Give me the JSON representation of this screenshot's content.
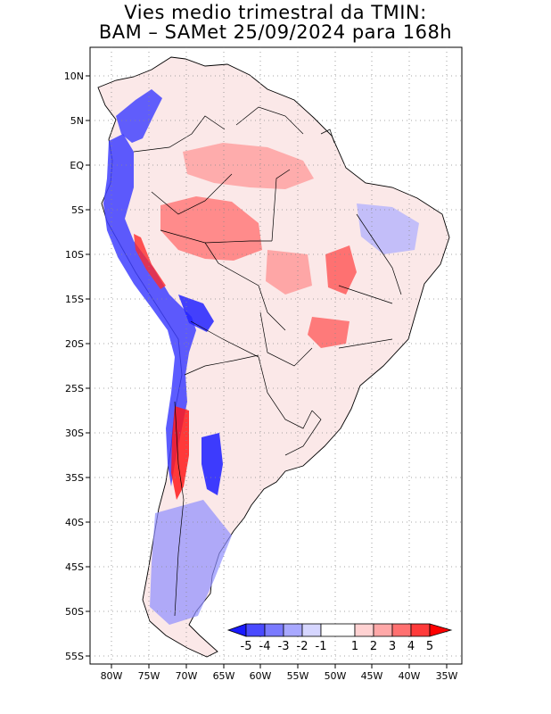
{
  "title": {
    "line1": "Vies medio trimestral da TMIN:",
    "line2": "BAM – SAMet 25/09/2024  para 168h"
  },
  "map": {
    "lon_ticks": [
      "80W",
      "75W",
      "70W",
      "65W",
      "60W",
      "55W",
      "50W",
      "45W",
      "40W",
      "35W"
    ],
    "lat_ticks": [
      "10N",
      "5N",
      "EQ",
      "5S",
      "10S",
      "15S",
      "20S",
      "25S",
      "30S",
      "35S",
      "40S",
      "45S",
      "50S",
      "55S"
    ],
    "region": "South America",
    "gridlines": true
  },
  "colorbar": {
    "labels": [
      "-5",
      "-4",
      "-3",
      "-2",
      "-1",
      "1",
      "2",
      "3",
      "4",
      "5"
    ],
    "colors": [
      "#1a1aff",
      "#4a4aff",
      "#7a7aff",
      "#a8a8ff",
      "#d6d6ff",
      "#ffffff",
      "#ffd2d2",
      "#ffa8a8",
      "#ff7070",
      "#ff3a3a",
      "#ff0000"
    ]
  }
}
